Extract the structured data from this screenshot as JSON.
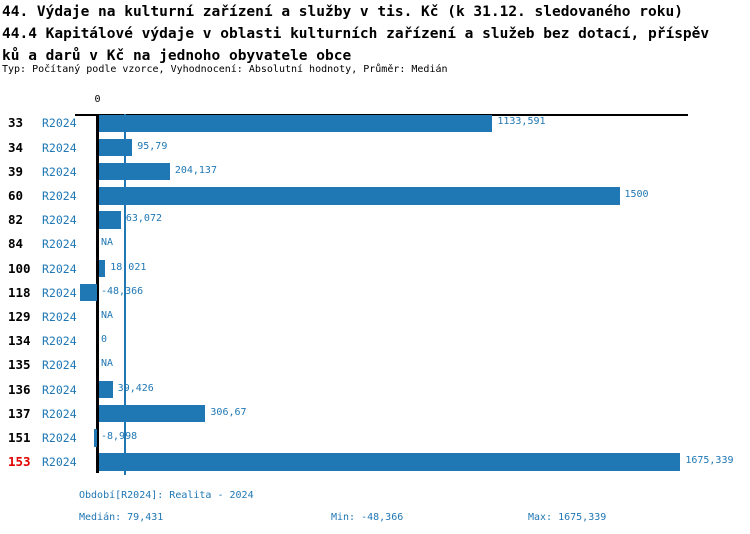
{
  "header": {
    "title_line1": "44. Výdaje na kulturní zařízení a služby v tis. Kč (k 31.12. sledovaného roku)",
    "title_line2": "44.4 Kapitálové výdaje v oblasti kulturních zařízení a služeb bez dotací, příspěv",
    "title_line3": "ků a darů v Kč na jednoho obyvatele obce",
    "meta_line": "Typ: Počítaný podle vzorce, Vyhodnocení: Absolutní hodnoty, Průměr: Medián"
  },
  "colors": {
    "bar_blue": "#1f77b4",
    "text_blue": "#1f77b4",
    "highlight_red": "#e00000",
    "axis_black": "#000000"
  },
  "chart_data": {
    "type": "bar",
    "orientation": "horizontal",
    "title": "44. Výdaje na kulturní zařízení a služby v tis. Kč (k 31.12. sledovaného roku)",
    "subtitle": "44.4 Kapitálové výdaje v oblasti kulturních zařízení a služeb bez dotací, příspěvků a darů v Kč na jednoho obyvatele obce",
    "series_name": "R2024",
    "zero_label": "0",
    "xlim": [
      -48.366,
      1675.339
    ],
    "median": 79.431,
    "min": -48.366,
    "max": 1675.339,
    "highlighted_category": "153",
    "rows": [
      {
        "id": "33",
        "period": "R2024",
        "value": 1133.591,
        "label": "1133,591",
        "highlight": false
      },
      {
        "id": "34",
        "period": "R2024",
        "value": 95.79,
        "label": "95,79",
        "highlight": false
      },
      {
        "id": "39",
        "period": "R2024",
        "value": 204.137,
        "label": "204,137",
        "highlight": false
      },
      {
        "id": "60",
        "period": "R2024",
        "value": 1500,
        "label": "1500",
        "highlight": false
      },
      {
        "id": "82",
        "period": "R2024",
        "value": 63.072,
        "label": "63,072",
        "highlight": false
      },
      {
        "id": "84",
        "period": "R2024",
        "value": null,
        "label": "NA",
        "highlight": false
      },
      {
        "id": "100",
        "period": "R2024",
        "value": 18.021,
        "label": "18,021",
        "highlight": false
      },
      {
        "id": "118",
        "period": "R2024",
        "value": -48.366,
        "label": "-48,366",
        "highlight": false
      },
      {
        "id": "129",
        "period": "R2024",
        "value": null,
        "label": "NA",
        "highlight": false
      },
      {
        "id": "134",
        "period": "R2024",
        "value": 0,
        "label": "0",
        "highlight": false
      },
      {
        "id": "135",
        "period": "R2024",
        "value": null,
        "label": "NA",
        "highlight": false
      },
      {
        "id": "136",
        "period": "R2024",
        "value": 39.426,
        "label": "39,426",
        "highlight": false
      },
      {
        "id": "137",
        "period": "R2024",
        "value": 306.67,
        "label": "306,67",
        "highlight": false
      },
      {
        "id": "151",
        "period": "R2024",
        "value": -8.998,
        "label": "-8,998",
        "highlight": false
      },
      {
        "id": "153",
        "period": "R2024",
        "value": 1675.339,
        "label": "1675,339",
        "highlight": true
      }
    ]
  },
  "footer": {
    "period_line": "Období[R2024]: Realita - 2024",
    "median_label": "Medián: 79,431",
    "min_label": "Min: -48,366",
    "max_label": "Max: 1675,339"
  }
}
